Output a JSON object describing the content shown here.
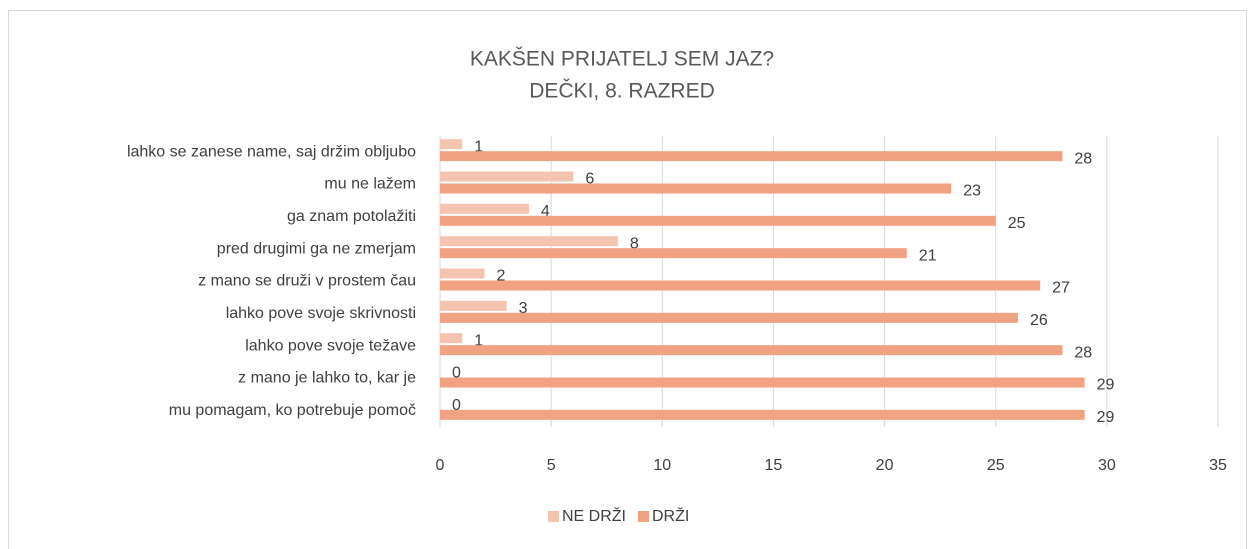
{
  "chart_data": {
    "type": "hbar",
    "title": "KAKŠEN PRIJATELJ SEM JAZ?",
    "subtitle": "DEČKI, 8. RAZRED",
    "categories": [
      "lahko se zanese name, saj držim obljubo",
      "mu ne lažem",
      "ga znam potolažiti",
      "pred drugimi ga ne zmerjam",
      "z mano se druži v prostem čau",
      "lahko pove svoje skrivnosti",
      "lahko pove svoje težave",
      "z mano je lahko to, kar je",
      "mu pomagam, ko potrebuje pomoč"
    ],
    "series": [
      {
        "name": "NE DRŽI",
        "color": "#f5c4b1",
        "values": [
          1,
          6,
          4,
          8,
          2,
          3,
          1,
          0,
          0
        ]
      },
      {
        "name": "DRŽI",
        "color": "#f0a283",
        "values": [
          28,
          23,
          25,
          21,
          27,
          26,
          28,
          29,
          29
        ]
      }
    ],
    "xlim": [
      0,
      35
    ],
    "xticks": [
      0,
      5,
      10,
      15,
      20,
      25,
      30,
      35
    ],
    "grid": true,
    "legend": "bottom"
  }
}
